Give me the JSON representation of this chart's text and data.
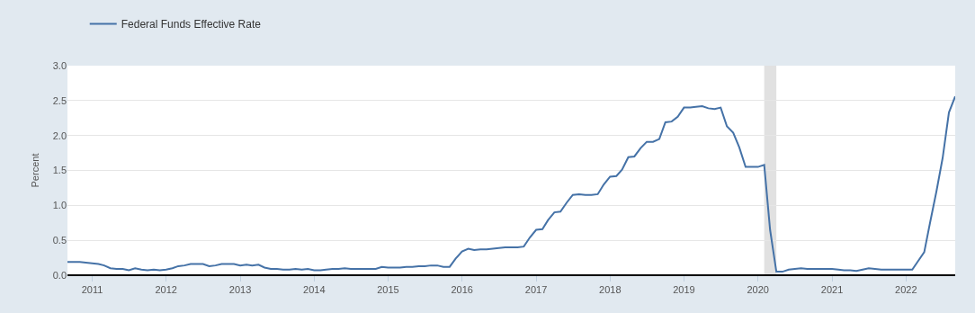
{
  "chart_data": {
    "type": "line",
    "ylabel": "Percent",
    "legend": "top left",
    "grid": "y",
    "marker": "none",
    "line_style": "solid",
    "xlim": [
      "2010-09-01",
      "2022-09-01"
    ],
    "ylim": [
      0,
      3
    ],
    "xticks": [
      {
        "value": "2011-01-01",
        "label": "2011"
      },
      {
        "value": "2012-01-01",
        "label": "2012"
      },
      {
        "value": "2013-01-01",
        "label": "2013"
      },
      {
        "value": "2014-01-01",
        "label": "2014"
      },
      {
        "value": "2015-01-01",
        "label": "2015"
      },
      {
        "value": "2016-01-01",
        "label": "2016"
      },
      {
        "value": "2017-01-01",
        "label": "2017"
      },
      {
        "value": "2018-01-01",
        "label": "2018"
      },
      {
        "value": "2019-01-01",
        "label": "2019"
      },
      {
        "value": "2020-01-01",
        "label": "2020"
      },
      {
        "value": "2021-01-01",
        "label": "2021"
      },
      {
        "value": "2022-01-01",
        "label": "2022"
      }
    ],
    "yticks": [
      {
        "value": 0,
        "label": "0.0"
      },
      {
        "value": 0.5,
        "label": "0.5"
      },
      {
        "value": 1,
        "label": "1.0"
      },
      {
        "value": 1.5,
        "label": "1.5"
      },
      {
        "value": 2,
        "label": "2.0"
      },
      {
        "value": 2.5,
        "label": "2.5"
      },
      {
        "value": 3,
        "label": "3.0"
      }
    ],
    "bands": [
      {
        "axis": "x",
        "from": "2020-02-01",
        "to": "2020-04-01",
        "color": "#e1e1e1"
      }
    ],
    "x": [
      "2010-09",
      "2010-10",
      "2010-11",
      "2010-12",
      "2011-01",
      "2011-02",
      "2011-03",
      "2011-04",
      "2011-05",
      "2011-06",
      "2011-07",
      "2011-08",
      "2011-09",
      "2011-10",
      "2011-11",
      "2011-12",
      "2012-01",
      "2012-02",
      "2012-03",
      "2012-04",
      "2012-05",
      "2012-06",
      "2012-07",
      "2012-08",
      "2012-09",
      "2012-10",
      "2012-11",
      "2012-12",
      "2013-01",
      "2013-02",
      "2013-03",
      "2013-04",
      "2013-05",
      "2013-06",
      "2013-07",
      "2013-08",
      "2013-09",
      "2013-10",
      "2013-11",
      "2013-12",
      "2014-01",
      "2014-02",
      "2014-03",
      "2014-04",
      "2014-05",
      "2014-06",
      "2014-07",
      "2014-08",
      "2014-09",
      "2014-10",
      "2014-11",
      "2014-12",
      "2015-01",
      "2015-02",
      "2015-03",
      "2015-04",
      "2015-05",
      "2015-06",
      "2015-07",
      "2015-08",
      "2015-09",
      "2015-10",
      "2015-11",
      "2015-12",
      "2016-01",
      "2016-02",
      "2016-03",
      "2016-04",
      "2016-05",
      "2016-06",
      "2016-07",
      "2016-08",
      "2016-09",
      "2016-10",
      "2016-11",
      "2016-12",
      "2017-01",
      "2017-02",
      "2017-03",
      "2017-04",
      "2017-05",
      "2017-06",
      "2017-07",
      "2017-08",
      "2017-09",
      "2017-10",
      "2017-11",
      "2017-12",
      "2018-01",
      "2018-02",
      "2018-03",
      "2018-04",
      "2018-05",
      "2018-06",
      "2018-07",
      "2018-08",
      "2018-09",
      "2018-10",
      "2018-11",
      "2018-12",
      "2019-01",
      "2019-02",
      "2019-03",
      "2019-04",
      "2019-05",
      "2019-06",
      "2019-07",
      "2019-08",
      "2019-09",
      "2019-10",
      "2019-11",
      "2019-12",
      "2020-01",
      "2020-02",
      "2020-03",
      "2020-04",
      "2020-05",
      "2020-06",
      "2020-07",
      "2020-08",
      "2020-09",
      "2020-10",
      "2020-11",
      "2020-12",
      "2021-01",
      "2021-02",
      "2021-03",
      "2021-04",
      "2021-05",
      "2021-06",
      "2021-07",
      "2021-08",
      "2021-09",
      "2021-10",
      "2021-11",
      "2021-12",
      "2022-01",
      "2022-02",
      "2022-03",
      "2022-04",
      "2022-05",
      "2022-06",
      "2022-07",
      "2022-08",
      "2022-09"
    ],
    "series": [
      {
        "name": "Federal Funds Effective Rate",
        "color": "#4572a7",
        "values": [
          0.19,
          0.19,
          0.19,
          0.18,
          0.17,
          0.16,
          0.14,
          0.1,
          0.09,
          0.09,
          0.07,
          0.1,
          0.08,
          0.07,
          0.08,
          0.07,
          0.08,
          0.1,
          0.13,
          0.14,
          0.16,
          0.16,
          0.16,
          0.13,
          0.14,
          0.16,
          0.16,
          0.16,
          0.14,
          0.15,
          0.14,
          0.15,
          0.11,
          0.09,
          0.09,
          0.08,
          0.08,
          0.09,
          0.08,
          0.09,
          0.07,
          0.07,
          0.08,
          0.09,
          0.09,
          0.1,
          0.09,
          0.09,
          0.09,
          0.09,
          0.09,
          0.12,
          0.11,
          0.11,
          0.11,
          0.12,
          0.12,
          0.13,
          0.13,
          0.14,
          0.14,
          0.12,
          0.12,
          0.24,
          0.34,
          0.38,
          0.36,
          0.37,
          0.37,
          0.38,
          0.39,
          0.4,
          0.4,
          0.4,
          0.41,
          0.54,
          0.65,
          0.66,
          0.79,
          0.9,
          0.91,
          1.04,
          1.15,
          1.16,
          1.15,
          1.15,
          1.16,
          1.3,
          1.41,
          1.42,
          1.51,
          1.69,
          1.7,
          1.82,
          1.91,
          1.91,
          1.95,
          2.19,
          2.2,
          2.27,
          2.4,
          2.4,
          2.41,
          2.42,
          2.39,
          2.38,
          2.4,
          2.13,
          2.04,
          1.83,
          1.55,
          1.55,
          1.55,
          1.58,
          0.65,
          0.05,
          0.05,
          0.08,
          0.09,
          0.1,
          0.09,
          0.09,
          0.09,
          0.09,
          0.09,
          0.08,
          0.07,
          0.07,
          0.06,
          0.08,
          0.1,
          0.09,
          0.08,
          0.08,
          0.08,
          0.08,
          0.08,
          0.08,
          0.2,
          0.33,
          0.77,
          1.21,
          1.68,
          2.33,
          2.56
        ]
      }
    ]
  }
}
